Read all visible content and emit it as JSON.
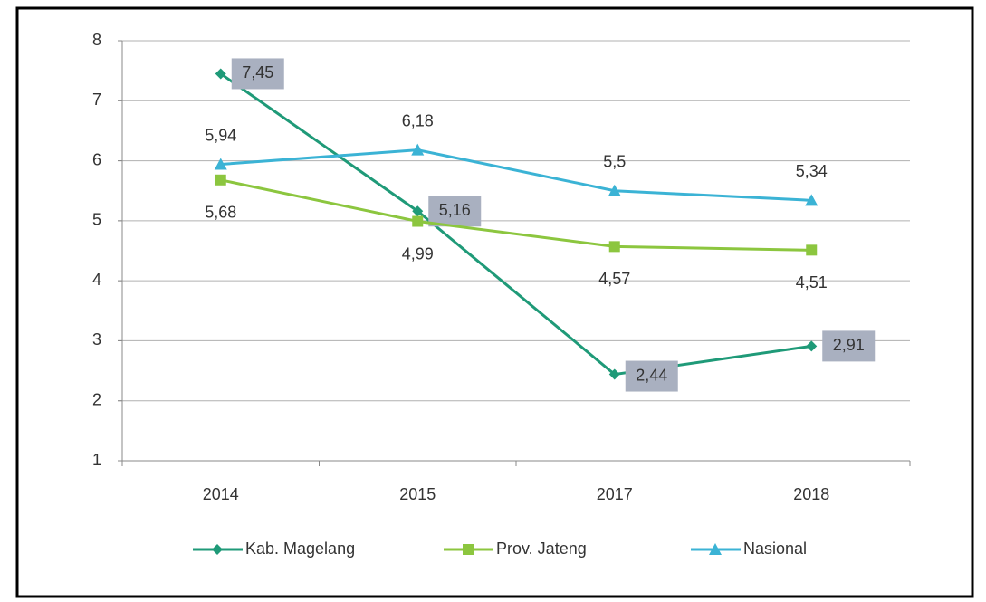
{
  "chart_data": {
    "type": "line",
    "categories": [
      "2014",
      "2015",
      "2017",
      "2018"
    ],
    "series": [
      {
        "name": "Kab. Magelang",
        "color": "#1f9a78",
        "marker": "diamond",
        "values": [
          7.45,
          5.16,
          2.44,
          2.91
        ],
        "value_labels": [
          "7,45",
          "5,16",
          "2,44",
          "2,91"
        ]
      },
      {
        "name": "Prov. Jateng",
        "color": "#8cc63f",
        "marker": "square",
        "values": [
          5.68,
          4.99,
          4.57,
          4.51
        ],
        "value_labels": [
          "5,68",
          "4,99",
          "4,57",
          "4,51"
        ]
      },
      {
        "name": "Nasional",
        "color": "#3bb3d5",
        "marker": "triangle",
        "values": [
          5.94,
          6.18,
          5.5,
          5.34
        ],
        "value_labels": [
          "5,94",
          "6,18",
          "5,5",
          "5,34"
        ]
      }
    ],
    "ylim": [
      1,
      8
    ],
    "yticks": [
      1,
      2,
      3,
      4,
      5,
      6,
      7,
      8
    ],
    "grid": true,
    "legend": "bottom"
  }
}
